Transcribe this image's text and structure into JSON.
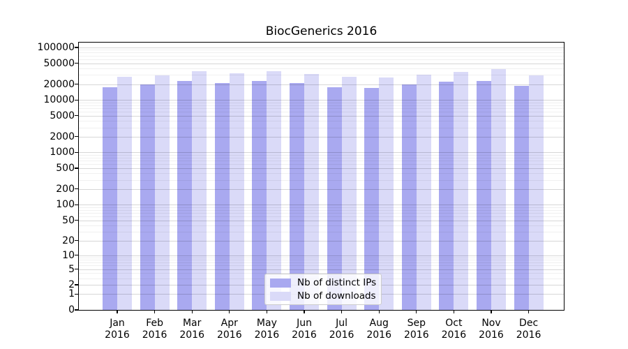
{
  "chart_data": {
    "type": "bar",
    "title": "BiocGenerics 2016",
    "categories": [
      "Jan",
      "Feb",
      "Mar",
      "Apr",
      "May",
      "Jun",
      "Jul",
      "Aug",
      "Sep",
      "Oct",
      "Nov",
      "Dec"
    ],
    "x_sublabel": "2016",
    "series": [
      {
        "name": "Nb of distinct IPs",
        "color": "#a9a9f0",
        "values": [
          17400,
          19500,
          23100,
          21100,
          23100,
          20800,
          17400,
          16900,
          19700,
          22400,
          23300,
          18400
        ]
      },
      {
        "name": "Nb of downloads",
        "color": "#dadaf8",
        "values": [
          27600,
          29800,
          35300,
          32200,
          35700,
          31300,
          27600,
          27200,
          30300,
          34300,
          38800,
          29000
        ]
      }
    ],
    "yscale": "log1p",
    "yticks": [
      0,
      1,
      2,
      5,
      10,
      20,
      50,
      100,
      200,
      500,
      1000,
      2000,
      5000,
      10000,
      20000,
      50000,
      100000
    ],
    "ylim": [
      0,
      123900
    ],
    "grid": true,
    "legend_position": "bottom-center"
  }
}
